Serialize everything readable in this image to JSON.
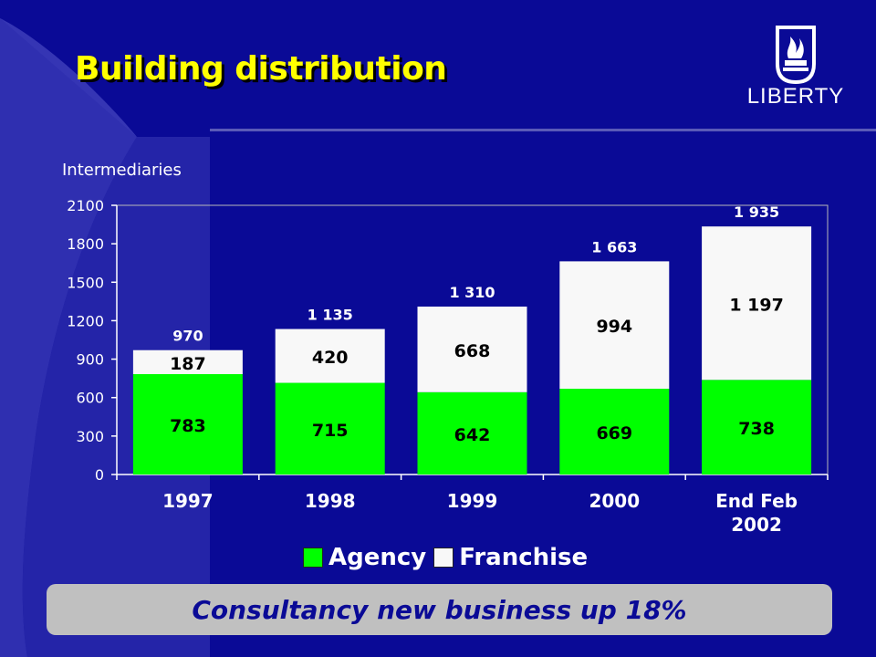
{
  "slide": {
    "title": "Building distribution",
    "logo_text": "LIBERTY",
    "banner": "Consultancy new business up 18%"
  },
  "colors": {
    "background": "#0a0a96",
    "title": "#ffff00",
    "agency": "#00ff00",
    "franchise": "#f8f8f8",
    "banner_bg": "#c0c0c0"
  },
  "chart_data": {
    "type": "bar",
    "stacked": true,
    "ylabel": "Intermediaries",
    "ylim": [
      0,
      2100
    ],
    "yticks": [
      "0",
      "300",
      "600",
      "900",
      "1200",
      "1500",
      "1800",
      "2100"
    ],
    "categories": [
      "1997",
      "1998",
      "1999",
      "2000",
      "End Feb 2002"
    ],
    "series": [
      {
        "name": "Agency",
        "values": [
          783,
          715,
          642,
          669,
          738
        ],
        "labels": [
          "783",
          "715",
          "642",
          "669",
          "738"
        ]
      },
      {
        "name": "Franchise",
        "values": [
          187,
          420,
          668,
          994,
          1197
        ],
        "labels": [
          "187",
          "420",
          "668",
          "994",
          "1 197"
        ]
      }
    ],
    "totals": [
      "970",
      "1 135",
      "1 310",
      "1 663",
      "1 935"
    ],
    "grid": false,
    "legend": "bottom"
  }
}
